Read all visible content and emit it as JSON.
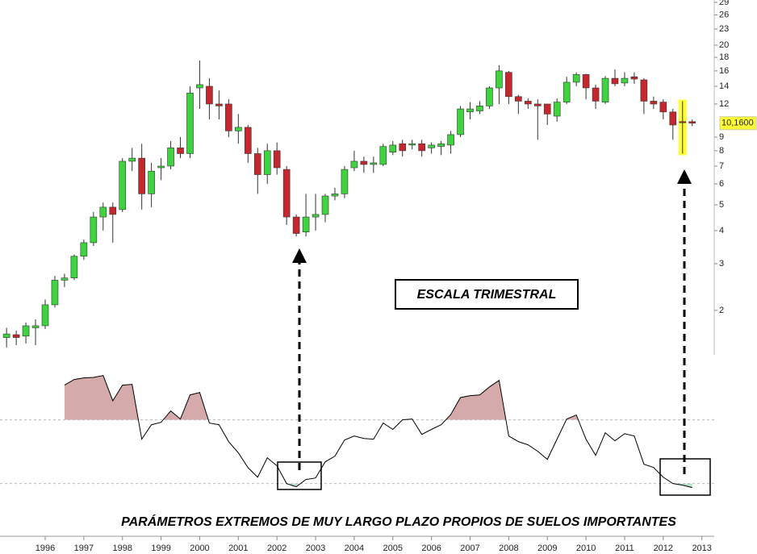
{
  "chart_data": [
    {
      "type": "candlestick",
      "x": [
        1995,
        1995.25,
        1995.5,
        1995.75,
        1996,
        1996.25,
        1996.5,
        1996.75,
        1997,
        1997.25,
        1997.5,
        1997.75,
        1998,
        1998.25,
        1998.5,
        1998.75,
        1999,
        1999.25,
        1999.5,
        1999.75,
        2000,
        2000.25,
        2000.5,
        2000.75,
        2001,
        2001.25,
        2001.5,
        2001.75,
        2002,
        2002.25,
        2002.5,
        2002.75,
        2003,
        2003.25,
        2003.5,
        2003.75,
        2004,
        2004.25,
        2004.5,
        2004.75,
        2005,
        2005.25,
        2005.5,
        2005.75,
        2006,
        2006.25,
        2006.5,
        2006.75,
        2007,
        2007.25,
        2007.5,
        2007.75,
        2008,
        2008.25,
        2008.5,
        2008.75,
        2009,
        2009.25,
        2009.5,
        2009.75,
        2010,
        2010.25,
        2010.5,
        2010.75,
        2011,
        2011.25,
        2011.5,
        2011.75,
        2012,
        2012.25,
        2012.5,
        2012.75
      ],
      "open": [
        1.58,
        1.62,
        1.6,
        1.72,
        1.75,
        2.1,
        2.6,
        2.65,
        3.2,
        3.6,
        4.5,
        4.9,
        4.8,
        7.3,
        7.5,
        5.5,
        6.9,
        7.0,
        8.2,
        7.8,
        13.8,
        14,
        12,
        12,
        9.5,
        9.8,
        7.8,
        6.5,
        8,
        6.8,
        4.5,
        3.95,
        4.5,
        4.6,
        5.4,
        5.5,
        6.9,
        7.3,
        7.1,
        7.1,
        7.9,
        8.5,
        8.4,
        8.5,
        8.2,
        8.3,
        8.4,
        9.2,
        11.2,
        11.3,
        11.8,
        13.8,
        15.8,
        12.8,
        12.3,
        12,
        12,
        10.8,
        12.2,
        14.5,
        15.5,
        13.8,
        12.2,
        15,
        14.4,
        15.2,
        14.8,
        12.3,
        12.2,
        11.2,
        10.3,
        10.3
      ],
      "high": [
        1.72,
        1.68,
        1.8,
        1.85,
        2.2,
        2.7,
        2.75,
        3.25,
        3.7,
        4.7,
        5.1,
        5.1,
        7.5,
        8.2,
        8.5,
        7.2,
        7.5,
        8.7,
        9.0,
        14,
        17.5,
        15,
        13.5,
        12.5,
        11,
        10,
        8.2,
        8.5,
        8.6,
        7.0,
        4.6,
        5.5,
        5.5,
        5.5,
        5.8,
        7.0,
        8.0,
        7.6,
        7.6,
        8.5,
        8.7,
        8.8,
        8.8,
        8.8,
        8.6,
        8.7,
        9.5,
        11.8,
        12.2,
        12.3,
        14,
        16.8,
        16,
        13,
        12.6,
        12.5,
        12,
        12.6,
        15.2,
        15.8,
        15.6,
        14.2,
        15.3,
        16.2,
        15.8,
        15.8,
        15,
        12.8,
        12.5,
        11.5,
        12.3,
        10.5
      ],
      "low": [
        1.45,
        1.48,
        1.5,
        1.48,
        1.7,
        2.05,
        2.45,
        2.6,
        3.1,
        3.5,
        4.0,
        3.6,
        4.7,
        6.7,
        4.8,
        4.9,
        6.2,
        6.8,
        7.5,
        7.5,
        11.5,
        10.5,
        10.5,
        9.0,
        8.5,
        7.2,
        5.5,
        6,
        6.5,
        4.2,
        3.8,
        3.8,
        4.0,
        4.3,
        5.2,
        5.3,
        6.7,
        6.6,
        6.6,
        7.0,
        7.7,
        7.6,
        8.1,
        7.6,
        7.8,
        7.7,
        7.8,
        9.0,
        10.5,
        11,
        11.5,
        12,
        12,
        11,
        11.5,
        8.8,
        10,
        10.3,
        12,
        14,
        12.5,
        11.5,
        12,
        14,
        14,
        14.3,
        11,
        11.5,
        10.5,
        8.8,
        7.8,
        9.9
      ],
      "close": [
        1.63,
        1.58,
        1.75,
        1.75,
        2.1,
        2.6,
        2.65,
        3.2,
        3.6,
        4.5,
        4.9,
        4.6,
        7.3,
        7.5,
        5.5,
        6.7,
        7.0,
        8.2,
        7.8,
        13.2,
        14.2,
        12,
        11.8,
        9.5,
        9.8,
        7.8,
        6.5,
        8,
        6.9,
        4.5,
        3.9,
        4.5,
        4.6,
        5.4,
        5.5,
        6.8,
        7.3,
        7.1,
        7.2,
        8.3,
        8.4,
        8.0,
        8.5,
        8.0,
        8.4,
        8.5,
        9.2,
        11.5,
        11.5,
        11.8,
        13.8,
        16,
        12.8,
        12.3,
        12,
        11.8,
        11,
        12.2,
        14.5,
        15.5,
        13.8,
        12.3,
        15,
        14.3,
        15,
        14.9,
        12.3,
        12,
        11.2,
        10,
        10.2,
        10.16
      ],
      "up_color": "#3fd33f",
      "down_color": "#c4272d",
      "highlight": 70,
      "highlight_color": "#ffff33",
      "log_scale": true,
      "ylim": [
        1.36,
        29.6
      ],
      "yticks": [
        2,
        3,
        4,
        5,
        6,
        7,
        8,
        9,
        12,
        14,
        16,
        18,
        20,
        23,
        26,
        29
      ],
      "xlim": [
        1994.83,
        2013.32
      ],
      "xticks": [
        1996,
        1997,
        1998,
        1999,
        2000,
        2001,
        2002,
        2003,
        2004,
        2005,
        2006,
        2007,
        2008,
        2009,
        2010,
        2011,
        2012,
        2013
      ],
      "last_price": {
        "value": 10.16,
        "label": "10,1600"
      },
      "annotations": [
        "ESCALA TRIMESTRAL",
        "PARÁMETROS EXTREMOS DE MUY LARGO PLAZO PROPIOS DE SUELOS IMPORTANTES"
      ]
    },
    {
      "type": "line",
      "x": [
        1995,
        1995.25,
        1995.5,
        1995.75,
        1996,
        1996.25,
        1996.5,
        1996.75,
        1997,
        1997.25,
        1997.5,
        1997.75,
        1998,
        1998.25,
        1998.5,
        1998.75,
        1999,
        1999.25,
        1999.5,
        1999.75,
        2000,
        2000.25,
        2000.5,
        2000.75,
        2001,
        2001.25,
        2001.5,
        2001.75,
        2002,
        2002.25,
        2002.5,
        2002.75,
        2003,
        2003.25,
        2003.5,
        2003.75,
        2004,
        2004.25,
        2004.5,
        2004.75,
        2005,
        2005.25,
        2005.5,
        2005.75,
        2006,
        2006.25,
        2006.5,
        2006.75,
        2007,
        2007.25,
        2007.5,
        2007.75,
        2008,
        2008.25,
        2008.5,
        2008.75,
        2009,
        2009.25,
        2009.5,
        2009.75,
        2010,
        2010.25,
        2010.5,
        2010.75,
        2011,
        2011.25,
        2011.5,
        2011.75,
        2012,
        2012.25,
        2012.5,
        2012.75
      ],
      "values": [
        null,
        null,
        null,
        null,
        null,
        null,
        112.7,
        118,
        119.5,
        120,
        121.8,
        98,
        112.7,
        113.4,
        61.8,
        75.4,
        77.7,
        88.4,
        80.8,
        103.5,
        105.8,
        77,
        75.4,
        59.5,
        48.9,
        35,
        26,
        44.3,
        36.7,
        20,
        17,
        23.8,
        25.3,
        40.5,
        45.8,
        61,
        64.8,
        62.5,
        61.8,
        77,
        71,
        80,
        80.8,
        66.3,
        71,
        75.4,
        85,
        101,
        102.8,
        103.5,
        111,
        117.2,
        64.8,
        59.5,
        56.5,
        50.4,
        42.8,
        61.8,
        80.8,
        84.6,
        61.8,
        46.6,
        67.8,
        60.3,
        67,
        64.8,
        38.2,
        35.2,
        26,
        20,
        18.5,
        16.2
      ],
      "color": "#000000",
      "ylim": [
        0,
        125
      ],
      "levels": [
        80,
        20
      ],
      "level_fills": [
        "#d4aaaa",
        "#b9e2cc"
      ]
    }
  ]
}
